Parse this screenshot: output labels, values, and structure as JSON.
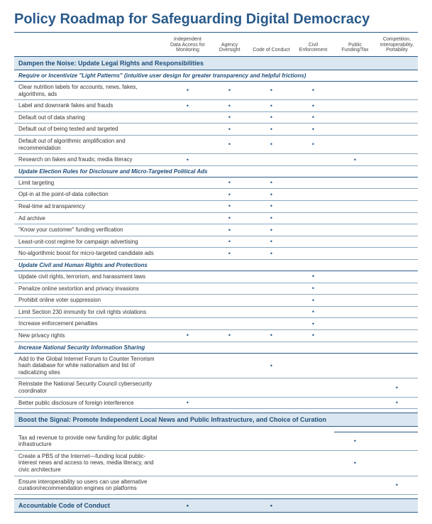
{
  "title": "Policy Roadmap for Safeguarding Digital Democracy",
  "columns": [
    "Independent Data Access for Monitoring",
    "Agency Oversight",
    "Code of Conduct",
    "Civil Enforcement",
    "Public Funding/Tax",
    "Competition, Interoperability, Portability"
  ],
  "sections": [
    {
      "title": "Dampen the Noise: Update Legal Rights and Responsibilities",
      "subsections": [
        {
          "title": "Require or Incentivize \"Light Patterns\" (intuitive user design for greater transparency and helpful frictions)",
          "items": [
            {
              "label": "Clear nutrition labels for accounts, news, fakes, algorithms, ads",
              "dots": [
                true,
                true,
                true,
                true,
                false,
                false
              ]
            },
            {
              "label": "Label and downrank fakes and frauds",
              "dots": [
                true,
                true,
                true,
                true,
                false,
                false
              ]
            },
            {
              "label": "Default out of data sharing",
              "dots": [
                false,
                true,
                true,
                true,
                false,
                false
              ]
            },
            {
              "label": "Default out of being tested and targeted",
              "dots": [
                false,
                true,
                true,
                true,
                false,
                false
              ]
            },
            {
              "label": "Default out of algorithmic amplification and recommendation",
              "dots": [
                false,
                true,
                true,
                true,
                false,
                false
              ]
            },
            {
              "label": "Research on fakes and frauds; media literacy",
              "dots": [
                true,
                false,
                false,
                false,
                true,
                false
              ]
            }
          ]
        },
        {
          "title": "Update Election Rules for Disclosure and Micro-Targeted Political Ads",
          "items": [
            {
              "label": "Limit targeting",
              "dots": [
                false,
                true,
                true,
                false,
                false,
                false
              ]
            },
            {
              "label": "Opt-in at the point-of-data collection",
              "dots": [
                false,
                true,
                true,
                false,
                false,
                false
              ]
            },
            {
              "label": "Real-time ad transparency",
              "dots": [
                false,
                true,
                true,
                false,
                false,
                false
              ]
            },
            {
              "label": "Ad archive",
              "dots": [
                false,
                true,
                true,
                false,
                false,
                false
              ]
            },
            {
              "label": "\"Know your customer\" funding verification",
              "dots": [
                false,
                true,
                true,
                false,
                false,
                false
              ]
            },
            {
              "label": "Least-unit-cost regime for campaign advertising",
              "dots": [
                false,
                true,
                true,
                false,
                false,
                false
              ]
            },
            {
              "label": "No-algorithmic boost for micro-targeted candidate ads",
              "dots": [
                false,
                true,
                true,
                false,
                false,
                false
              ]
            }
          ]
        },
        {
          "title": "Update Civil and Human Rights and Protections",
          "items": [
            {
              "label": "Update civil rights, terrorism, and harassment laws",
              "dots": [
                false,
                false,
                false,
                true,
                false,
                false
              ]
            },
            {
              "label": "Penalize online sextortion and privacy invasions",
              "dots": [
                false,
                false,
                false,
                true,
                false,
                false
              ]
            },
            {
              "label": "Prohibit online voter suppression",
              "dots": [
                false,
                false,
                false,
                true,
                false,
                false
              ]
            },
            {
              "label": "Limit Section 230 immunity for civil rights violations",
              "dots": [
                false,
                false,
                false,
                true,
                false,
                false
              ]
            },
            {
              "label": "Increase enforcement penalties",
              "dots": [
                false,
                false,
                false,
                true,
                false,
                false
              ]
            },
            {
              "label": "New privacy rights",
              "dots": [
                true,
                true,
                true,
                true,
                false,
                false
              ]
            }
          ]
        },
        {
          "title": "Increase National Security Information Sharing",
          "items": [
            {
              "label": "Add to the Global Internet Forum to Counter Terrorism hash database for white nationalism and list of radicalizing sites",
              "dots": [
                false,
                false,
                true,
                false,
                false,
                false
              ]
            },
            {
              "label": "Reinstate the National Security Council cybersecurity coordinator",
              "dots": [
                false,
                false,
                false,
                false,
                false,
                true
              ]
            },
            {
              "label": "Better public disclosure of foreign interference",
              "dots": [
                true,
                false,
                false,
                false,
                false,
                true
              ]
            }
          ]
        }
      ]
    },
    {
      "title": "Boost the Signal: Promote Independent Local News and Public Infrastructure, and Choice of Curation",
      "preItemsUnderlineCols": [
        false,
        false,
        false,
        false,
        true,
        true
      ],
      "items": [
        {
          "label": "Tax ad revenue to provide new funding for public digital infrastructure",
          "dots": [
            false,
            false,
            false,
            false,
            true,
            false
          ]
        },
        {
          "label": "Create a PBS of the Internet—funding local public-interest news and access to news, media literacy, and civic architecture",
          "dots": [
            false,
            false,
            false,
            false,
            true,
            false
          ]
        },
        {
          "label": "Ensure interoperability so users can use alternative curation/recommendation engines on platforms",
          "dots": [
            false,
            false,
            false,
            false,
            false,
            true
          ]
        }
      ]
    },
    {
      "title": "Accountable Code of Conduct",
      "sectionDots": [
        true,
        false,
        true,
        false,
        false,
        false
      ]
    }
  ],
  "colors": {
    "heading": "#2a5a8a",
    "sectionBg": "#dbe7f0",
    "sectionText": "#1e4d78",
    "rowBorder": "#8aa8c0"
  }
}
